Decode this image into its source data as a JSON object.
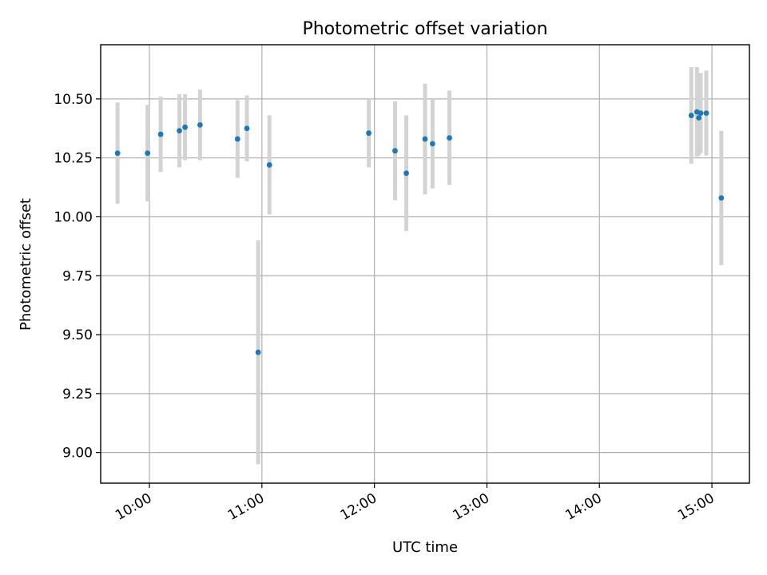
{
  "chart_data": {
    "type": "scatter",
    "title": "Photometric offset variation",
    "xlabel": "UTC time",
    "ylabel": "Photometric offset",
    "x_axis_kind": "time",
    "xlim": [
      "09:34",
      "15:20"
    ],
    "ylim": [
      8.87,
      10.73
    ],
    "x_ticks": [
      "10:00",
      "11:00",
      "12:00",
      "13:00",
      "14:00",
      "15:00"
    ],
    "y_ticks": [
      9.0,
      9.25,
      9.5,
      9.75,
      10.0,
      10.25,
      10.5
    ],
    "y_tick_labels": [
      "9.00",
      "9.25",
      "9.50",
      "9.75",
      "10.00",
      "10.25",
      "10.50"
    ],
    "grid": true,
    "colors": {
      "points": "#1f77b4",
      "error_bars": "#d3d3d3"
    },
    "series": [
      {
        "points": [
          {
            "x": "09:43",
            "y": 10.27,
            "yerr": 0.215
          },
          {
            "x": "09:59",
            "y": 10.27,
            "yerr": 0.205
          },
          {
            "x": "10:06",
            "y": 10.35,
            "yerr": 0.16
          },
          {
            "x": "10:16",
            "y": 10.365,
            "yerr": 0.155
          },
          {
            "x": "10:19",
            "y": 10.38,
            "yerr": 0.14
          },
          {
            "x": "10:27",
            "y": 10.39,
            "yerr": 0.15
          },
          {
            "x": "10:47",
            "y": 10.33,
            "yerr": 0.165
          },
          {
            "x": "10:52",
            "y": 10.375,
            "yerr": 0.14
          },
          {
            "x": "10:58",
            "y": 9.425,
            "yerr": 0.475
          },
          {
            "x": "11:04",
            "y": 10.22,
            "yerr": 0.21
          },
          {
            "x": "11:57",
            "y": 10.355,
            "yerr": 0.145
          },
          {
            "x": "12:11",
            "y": 10.28,
            "yerr": 0.21
          },
          {
            "x": "12:17",
            "y": 10.185,
            "yerr": 0.245
          },
          {
            "x": "12:27",
            "y": 10.33,
            "yerr": 0.235
          },
          {
            "x": "12:31",
            "y": 10.31,
            "yerr": 0.19
          },
          {
            "x": "12:40",
            "y": 10.335,
            "yerr": 0.2
          },
          {
            "x": "14:49",
            "y": 10.43,
            "yerr": 0.205
          },
          {
            "x": "14:52",
            "y": 10.445,
            "yerr": 0.19
          },
          {
            "x": "14:53",
            "y": 10.42,
            "yerr": 0.16
          },
          {
            "x": "14:54",
            "y": 10.44,
            "yerr": 0.17
          },
          {
            "x": "14:57",
            "y": 10.44,
            "yerr": 0.18
          },
          {
            "x": "15:05",
            "y": 10.08,
            "yerr": 0.285
          }
        ]
      }
    ]
  }
}
